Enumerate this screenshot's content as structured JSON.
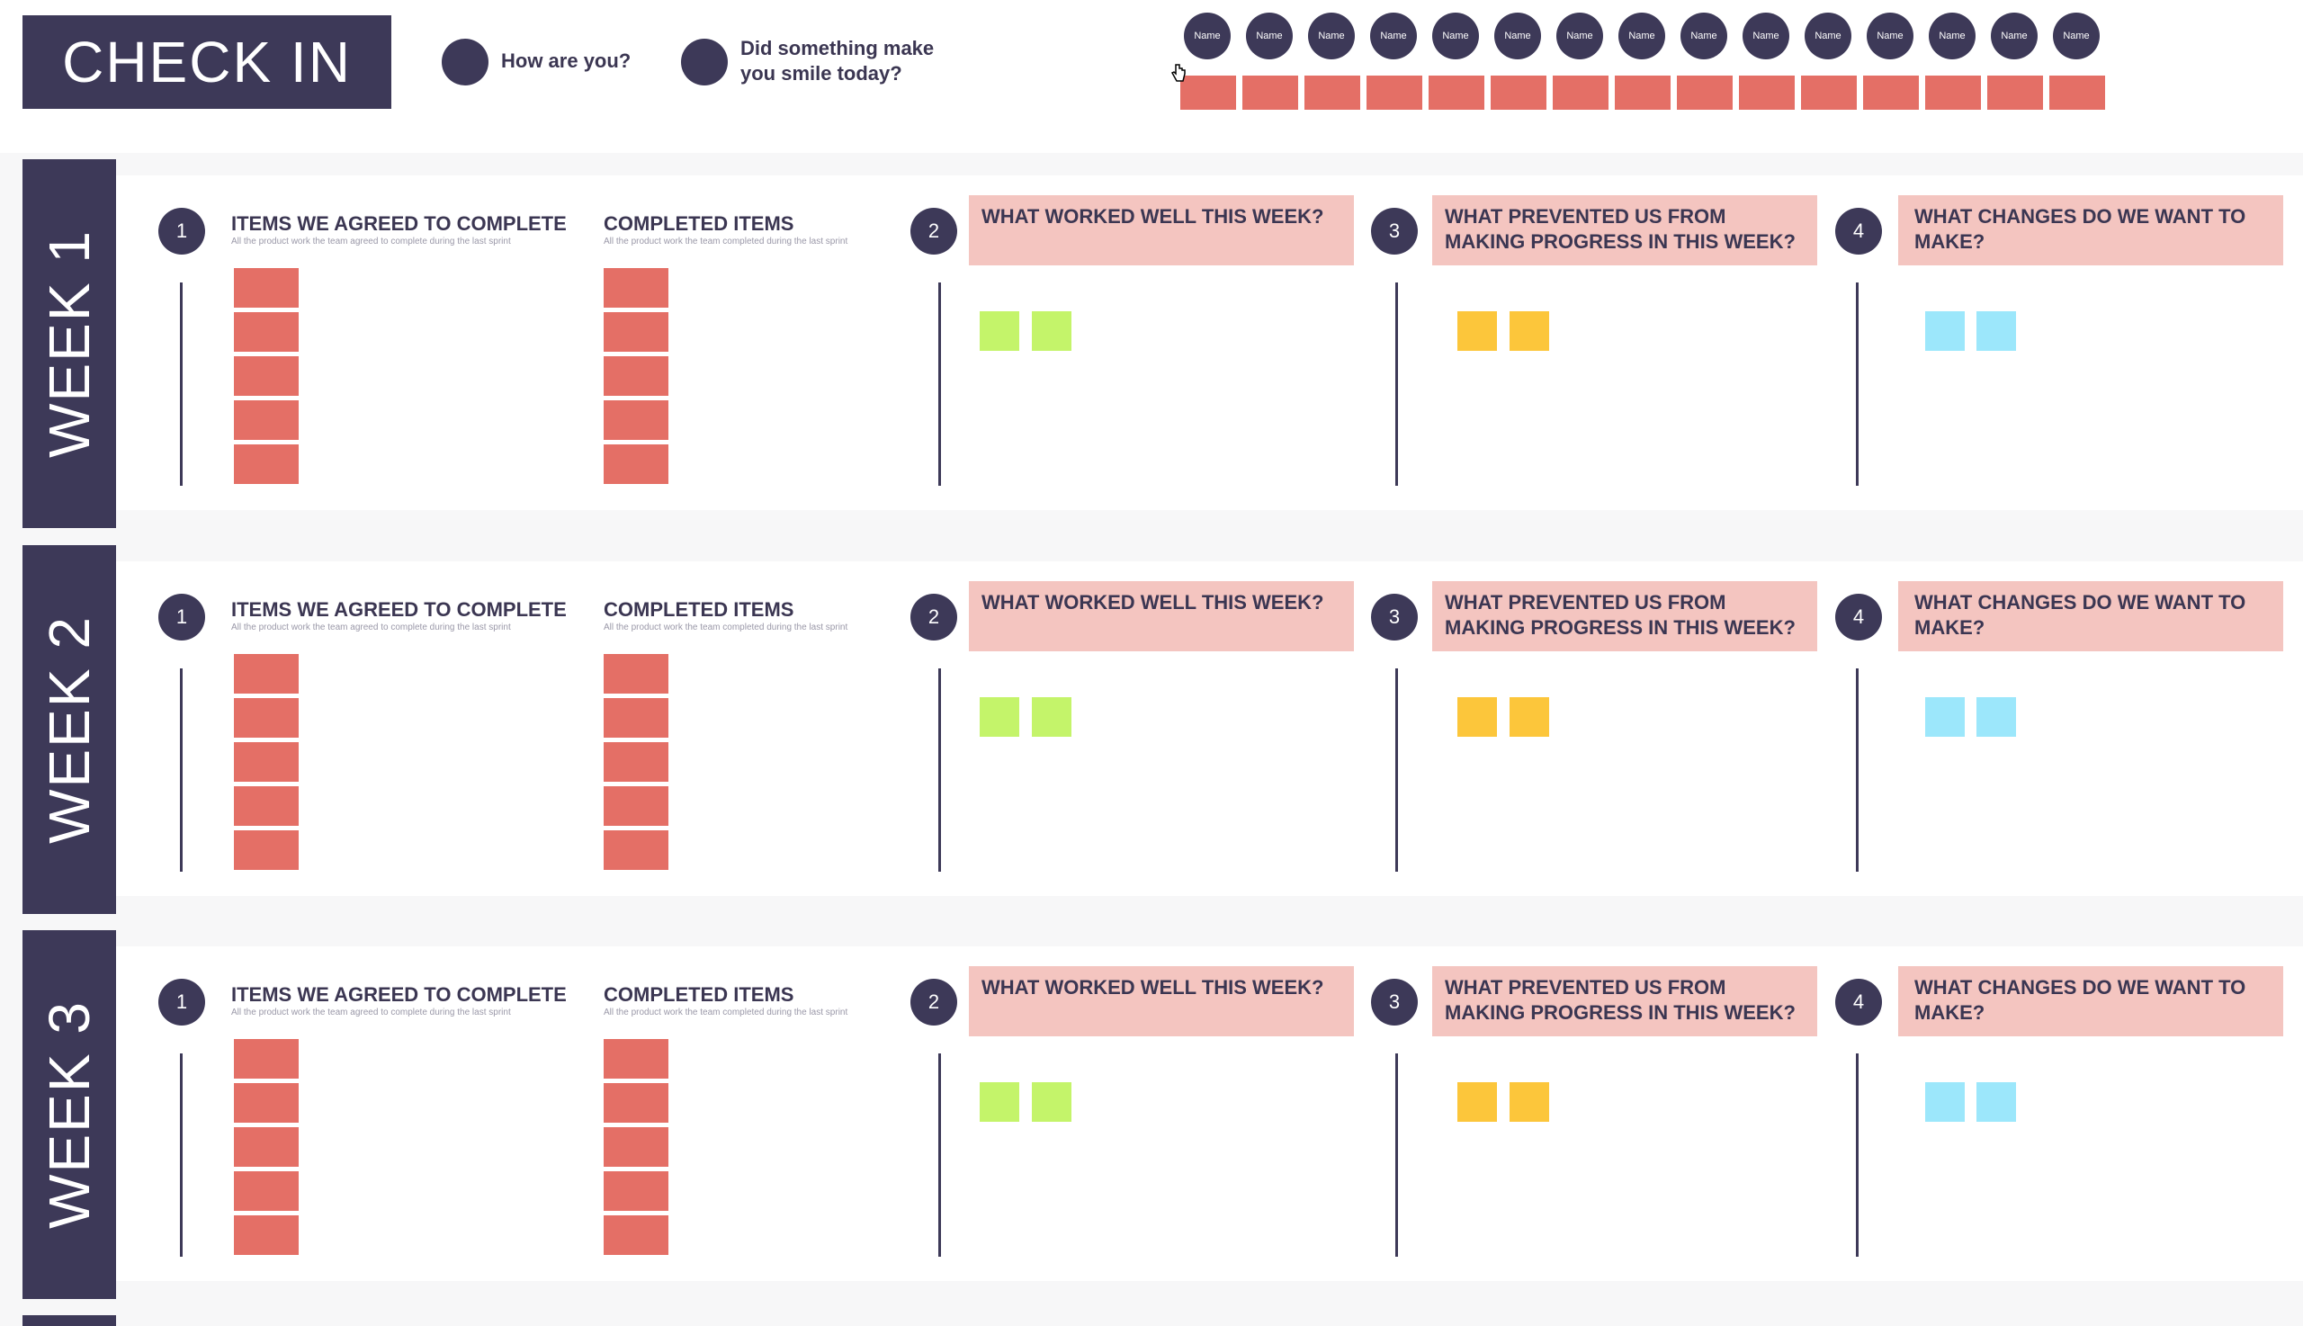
{
  "checkin": {
    "title": "CHECK IN",
    "questions": [
      {
        "text": "How are you?"
      },
      {
        "text": "Did something make you smile today?"
      }
    ],
    "names": [
      "Name",
      "Name",
      "Name",
      "Name",
      "Name",
      "Name",
      "Name",
      "Name",
      "Name",
      "Name",
      "Name",
      "Name",
      "Name",
      "Name",
      "Name"
    ],
    "name_note_count": 15
  },
  "column_titles": {
    "agreed": "ITEMS WE AGREED TO COMPLETE",
    "agreed_sub": "All the product work the team agreed to complete during the last sprint",
    "completed": "COMPLETED ITEMS",
    "completed_sub": "All the product work the team completed during the last sprint",
    "worked_well": "WHAT WORKED WELL THIS WEEK?",
    "prevented": "WHAT PREVENTED US FROM MAKING PROGRESS IN THIS WEEK?",
    "changes": "WHAT CHANGES DO WE WANT TO MAKE?"
  },
  "step_numbers": [
    "1",
    "2",
    "3",
    "4"
  ],
  "weeks": [
    {
      "label": "WEEK 1"
    },
    {
      "label": "WEEK 2"
    },
    {
      "label": "WEEK 3"
    }
  ],
  "colors": {
    "navy": "#3d3958",
    "note_red": "#e46f66",
    "header_pink": "#f4c5c0",
    "sticky_green": "#c4f46a",
    "sticky_yellow": "#fcc63b",
    "sticky_blue": "#9ce7fb"
  }
}
